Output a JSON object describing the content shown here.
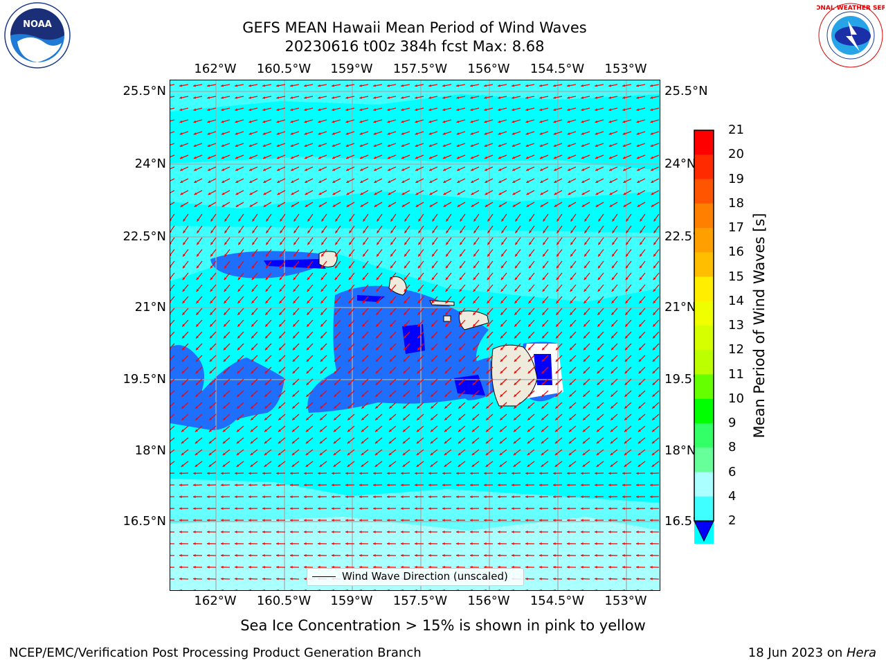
{
  "header": {
    "title_line1": "GEFS MEAN Hawaii Mean Period of Wind Waves",
    "title_line2": "20230616 t00z 384h fcst   Max: 8.68"
  },
  "logos": {
    "left": {
      "name": "noaa-logo",
      "text": "NOAA"
    },
    "right": {
      "name": "nws-logo",
      "text": "NATIONAL WEATHER SERVICE"
    }
  },
  "map": {
    "lon_ticks": [
      "162°W",
      "160.5°W",
      "159°W",
      "157.5°W",
      "156°W",
      "154.5°W",
      "153°W"
    ],
    "lat_ticks": [
      "25.5°N",
      "24°N",
      "22.5°N",
      "21°N",
      "19.5°N",
      "18°N",
      "16.5°N"
    ],
    "legend_label": "Wind Wave Direction (unscaled)",
    "arrow_color": "#ff0000",
    "land_color": "#efebdc"
  },
  "colorbar": {
    "label": "Mean Period of Wind Waves [s]",
    "ticks": [
      "21",
      "20",
      "19",
      "18",
      "17",
      "16",
      "15",
      "14",
      "13",
      "12",
      "11",
      "10",
      "9",
      "8",
      "6",
      "4",
      "2"
    ],
    "colors": [
      "#ff0000",
      "#ff2a00",
      "#ff5500",
      "#ff7f00",
      "#ff9f00",
      "#ffbf00",
      "#ffee00",
      "#f0ff00",
      "#d6ff00",
      "#bbff00",
      "#66ff00",
      "#00ff00",
      "#33ff66",
      "#66ff99",
      "#aaffff",
      "#40ffff",
      "#00ffff",
      "#0077ff"
    ],
    "under_color": "#0000ff"
  },
  "caption": "Sea Ice Concentration > 15% is shown in pink to yellow",
  "footer": {
    "left": "NCEP/EMC/Verification Post Processing Product Generation Branch",
    "right_prefix": "18 Jun 2023 on ",
    "right_machine": "Hera"
  }
}
